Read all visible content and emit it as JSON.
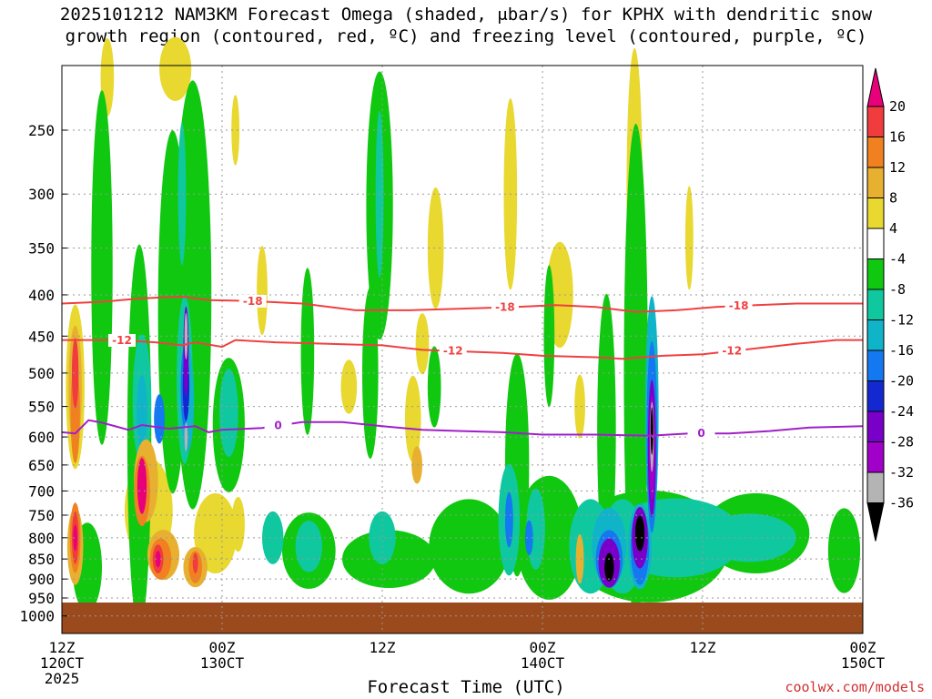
{
  "title": {
    "line1": "2025101212 NAM3KM Forecast Omega (shaded, μbar/s) for KPHX with dendritic snow",
    "line2": "growth region (contoured, red, ºC) and freezing level (contoured, purple, ºC)"
  },
  "credit": "coolwx.com/models",
  "chart_data": {
    "type": "heatmap",
    "xlabel": "Forecast Time (UTC)",
    "ylabel": "",
    "x_unit": "forecast hour from 2025-10-12 12Z",
    "x_range": [
      0,
      60
    ],
    "y_unit": "hPa",
    "y_range": [
      1000,
      200
    ],
    "x_ticks": [
      {
        "hour": 0,
        "lines": [
          "12Z",
          "120CT",
          "2025"
        ]
      },
      {
        "hour": 12,
        "lines": [
          "00Z",
          "130CT"
        ]
      },
      {
        "hour": 24,
        "lines": [
          "12Z"
        ]
      },
      {
        "hour": 36,
        "lines": [
          "00Z",
          "140CT"
        ]
      },
      {
        "hour": 48,
        "lines": [
          "12Z"
        ]
      },
      {
        "hour": 60,
        "lines": [
          "00Z",
          "150CT"
        ]
      }
    ],
    "y_ticks": [
      250,
      300,
      350,
      400,
      450,
      500,
      550,
      600,
      650,
      700,
      750,
      800,
      850,
      900,
      950,
      1000
    ],
    "colorbar": {
      "labels": [
        "20",
        "16",
        "12",
        "8",
        "4",
        "-4",
        "-8",
        "-12",
        "-16",
        "-20",
        "-24",
        "-28",
        "-32",
        "-36"
      ],
      "colors": [
        "#e8007a",
        "#f03c3c",
        "#f08020",
        "#e8b030",
        "#e8d830",
        "#ffffff",
        "#10c810",
        "#10c8a0",
        "#10b4c8",
        "#1478f0",
        "#1428d2",
        "#7800c8",
        "#a000c8",
        "#b4b4b4",
        "#000000"
      ]
    },
    "ground_color": "#9a4a1c",
    "contours": [
      {
        "label": "-18",
        "color": "#f04040",
        "points": [
          [
            0,
            410
          ],
          [
            3,
            408
          ],
          [
            6,
            404
          ],
          [
            9,
            402
          ],
          [
            11,
            406
          ],
          [
            14,
            407
          ],
          [
            18,
            410
          ],
          [
            22,
            418
          ],
          [
            26,
            418
          ],
          [
            30,
            416
          ],
          [
            34,
            414
          ],
          [
            37,
            412
          ],
          [
            40,
            414
          ],
          [
            43,
            420
          ],
          [
            46,
            418
          ],
          [
            49,
            414
          ],
          [
            52,
            412
          ],
          [
            55,
            410
          ],
          [
            58,
            410
          ],
          [
            60,
            410
          ]
        ],
        "label_hours": [
          14.3,
          33.2,
          50.7
        ]
      },
      {
        "label": "-12",
        "color": "#f04040",
        "points": [
          [
            0,
            455
          ],
          [
            4,
            455
          ],
          [
            7,
            458
          ],
          [
            9,
            462
          ],
          [
            10,
            458
          ],
          [
            12,
            464
          ],
          [
            13,
            455
          ],
          [
            16,
            458
          ],
          [
            20,
            460
          ],
          [
            24,
            462
          ],
          [
            27,
            468
          ],
          [
            30,
            470
          ],
          [
            33,
            472
          ],
          [
            36,
            476
          ],
          [
            40,
            478
          ],
          [
            42,
            480
          ],
          [
            45,
            476
          ],
          [
            48,
            474
          ],
          [
            52,
            466
          ],
          [
            55,
            460
          ],
          [
            58,
            455
          ],
          [
            60,
            455
          ]
        ],
        "label_hours": [
          4.5,
          29.3,
          50.2
        ]
      },
      {
        "label": "0",
        "color": "#a020c8",
        "points": [
          [
            0,
            592
          ],
          [
            1,
            594
          ],
          [
            2,
            572
          ],
          [
            3,
            576
          ],
          [
            5,
            588
          ],
          [
            6,
            580
          ],
          [
            8,
            586
          ],
          [
            10,
            582
          ],
          [
            11,
            592
          ],
          [
            12,
            588
          ],
          [
            15,
            585
          ],
          [
            18,
            575
          ],
          [
            21,
            575
          ],
          [
            24,
            582
          ],
          [
            27,
            588
          ],
          [
            30,
            590
          ],
          [
            33,
            592
          ],
          [
            36,
            596
          ],
          [
            40,
            596
          ],
          [
            44,
            598
          ],
          [
            47,
            594
          ],
          [
            50,
            594
          ],
          [
            53,
            590
          ],
          [
            56,
            584
          ],
          [
            60,
            582
          ]
        ],
        "label_hours": [
          16.2,
          47.9
        ]
      }
    ]
  }
}
